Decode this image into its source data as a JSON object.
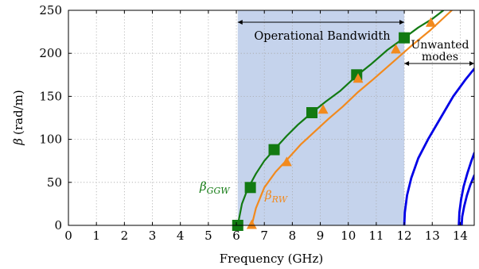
{
  "chart_data": {
    "type": "line",
    "xlabel": "Frequency (GHz)",
    "ylabel_symbol": "β",
    "ylabel_unit": "(rad/m)",
    "xlim": [
      0,
      14.5
    ],
    "ylim": [
      0,
      250
    ],
    "xticks": [
      0,
      1,
      2,
      3,
      4,
      5,
      6,
      7,
      8,
      9,
      10,
      11,
      12,
      13,
      14
    ],
    "yticks": [
      0,
      50,
      100,
      150,
      200,
      250
    ],
    "grid": true,
    "band": {
      "label": "Operational Bandwidth",
      "x_range": [
        6.05,
        12.0
      ],
      "color": "#c5d3ec"
    },
    "unwanted": {
      "label_line1": "Unwanted",
      "label_line2": "modes",
      "x_range": [
        12.0,
        14.5
      ]
    },
    "series": [
      {
        "label_symbol": "β",
        "label_subscript": "GGW",
        "color": "#127a12",
        "marker": "square",
        "curve": [
          [
            6.05,
            0
          ],
          [
            6.2,
            25
          ],
          [
            6.4,
            42
          ],
          [
            6.7,
            60
          ],
          [
            7.0,
            75
          ],
          [
            7.35,
            88
          ],
          [
            7.8,
            104
          ],
          [
            8.2,
            117
          ],
          [
            8.7,
            131
          ],
          [
            9.2,
            144
          ],
          [
            9.7,
            156
          ],
          [
            10.3,
            174
          ],
          [
            10.8,
            187
          ],
          [
            11.4,
            204
          ],
          [
            12.0,
            218
          ],
          [
            12.5,
            230
          ],
          [
            13.0,
            240
          ],
          [
            13.4,
            250
          ]
        ],
        "markers": [
          [
            6.05,
            0
          ],
          [
            6.5,
            44
          ],
          [
            7.35,
            88
          ],
          [
            8.7,
            131
          ],
          [
            10.3,
            175
          ],
          [
            12.0,
            218
          ]
        ]
      },
      {
        "label_symbol": "β",
        "label_subscript": "RW",
        "color": "#f28a1e",
        "marker": "triangle",
        "curve": [
          [
            6.55,
            0
          ],
          [
            6.7,
            20
          ],
          [
            7.0,
            44
          ],
          [
            7.4,
            62
          ],
          [
            7.8,
            76
          ],
          [
            8.3,
            94
          ],
          [
            8.8,
            109
          ],
          [
            9.3,
            124
          ],
          [
            9.8,
            138
          ],
          [
            10.35,
            155
          ],
          [
            10.9,
            170
          ],
          [
            11.6,
            190
          ],
          [
            12.3,
            210
          ],
          [
            12.9,
            226
          ],
          [
            13.5,
            244
          ],
          [
            13.7,
            250
          ]
        ],
        "markers": [
          [
            6.55,
            0
          ],
          [
            7.8,
            73
          ],
          [
            9.1,
            134
          ],
          [
            10.35,
            170
          ],
          [
            11.7,
            204
          ],
          [
            12.95,
            235
          ]
        ]
      },
      {
        "color": "#0000e6",
        "marker": "none",
        "curve": [
          [
            12.0,
            0
          ],
          [
            12.02,
            15
          ],
          [
            12.1,
            35
          ],
          [
            12.25,
            55
          ],
          [
            12.5,
            78
          ],
          [
            12.85,
            100
          ],
          [
            13.3,
            125
          ],
          [
            13.75,
            150
          ],
          [
            14.2,
            170
          ],
          [
            14.5,
            182
          ]
        ]
      },
      {
        "color": "#0000e6",
        "marker": "none",
        "curve": [
          [
            13.95,
            0
          ],
          [
            13.97,
            15
          ],
          [
            14.03,
            30
          ],
          [
            14.12,
            45
          ],
          [
            14.25,
            60
          ],
          [
            14.4,
            75
          ],
          [
            14.5,
            84
          ]
        ]
      },
      {
        "color": "#0000e6",
        "marker": "none",
        "curve": [
          [
            14.05,
            0
          ],
          [
            14.07,
            10
          ],
          [
            14.14,
            22
          ],
          [
            14.24,
            35
          ],
          [
            14.36,
            47
          ],
          [
            14.5,
            58
          ]
        ]
      }
    ]
  }
}
